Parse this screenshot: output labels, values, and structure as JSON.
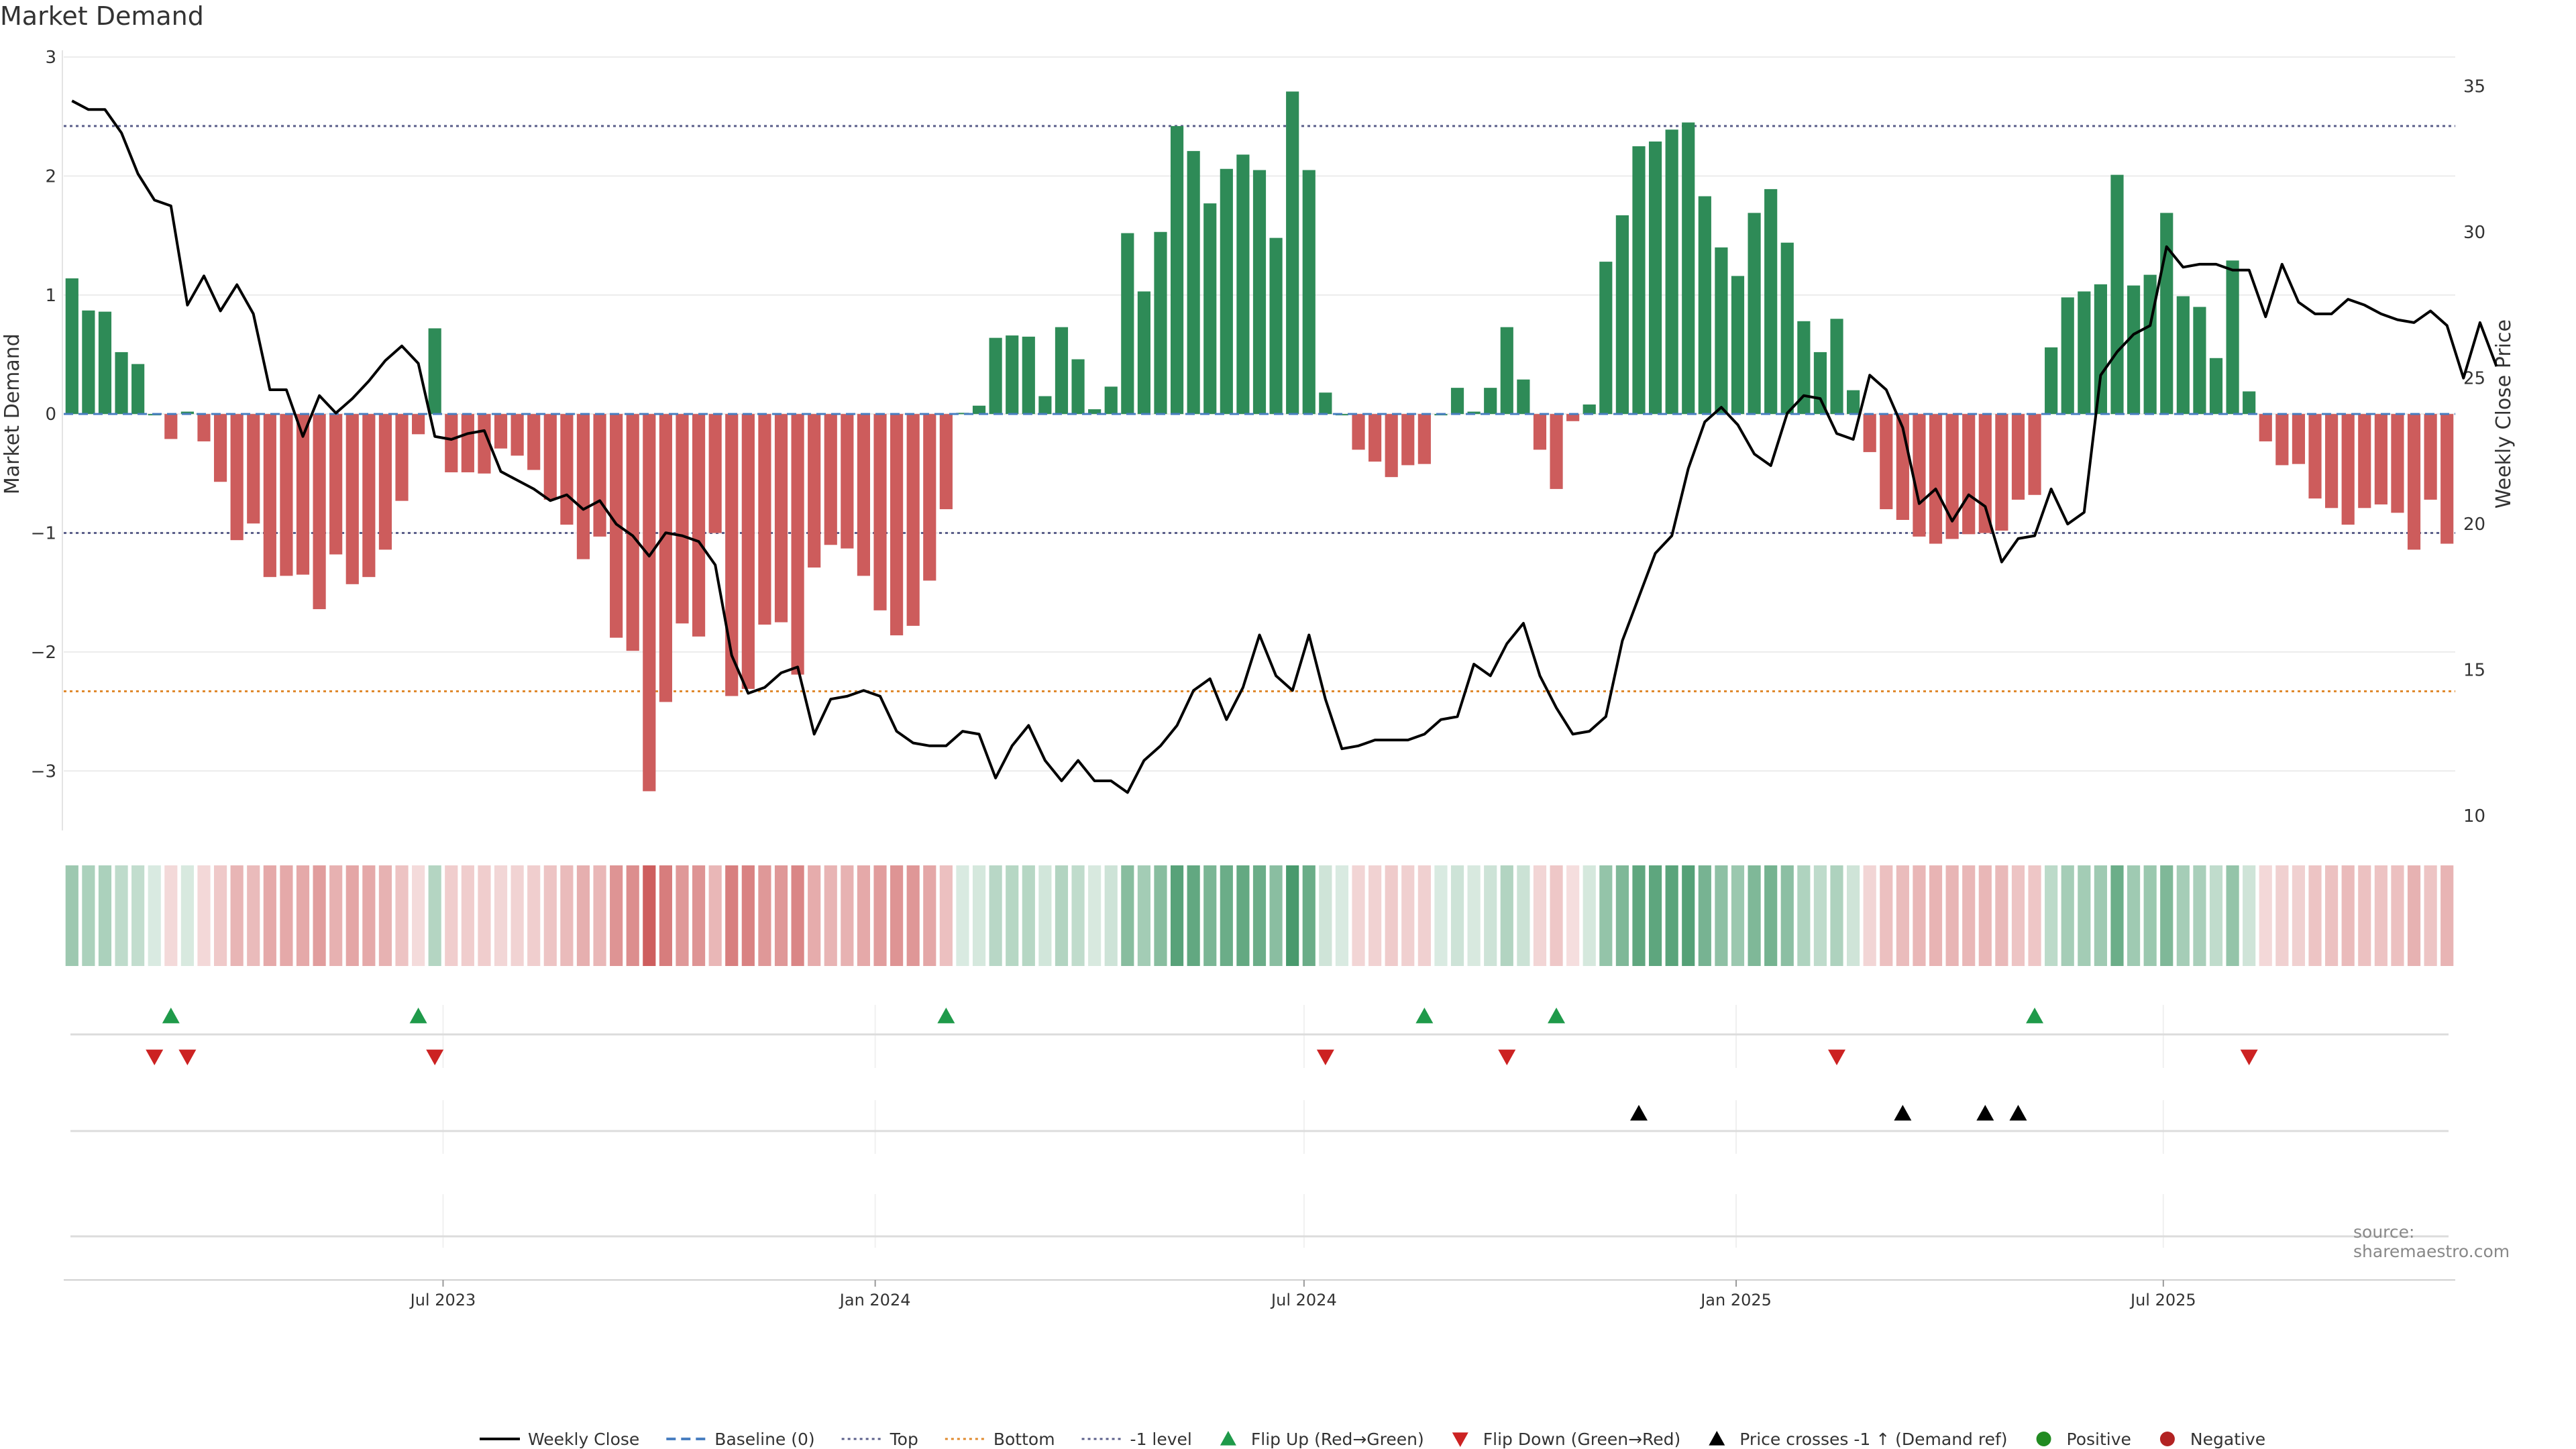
{
  "title": "Market Demand",
  "source": "source: sharemaestro.com",
  "colors": {
    "positive": "#2e8b57",
    "negative": "#cd5c5c",
    "price": "#000000",
    "baseline": "#4a7fc1",
    "top": "#5b5f8a",
    "bottom": "#e08a2e",
    "minus1": "#5b5f8a",
    "flip_up": "#1f9a4a",
    "flip_down": "#cc2222",
    "cross": "#000000",
    "legend_positive": "#228b22",
    "legend_negative": "#b22222"
  },
  "chart_data": {
    "type": "bar",
    "title": "Market Demand",
    "ylabel": "Market Demand",
    "y2label": "Weekly Close Price",
    "ylim": [
      -3.5,
      3.0
    ],
    "y2lim": [
      9.5,
      36.0
    ],
    "yticks": [
      3,
      2,
      1,
      0,
      -1,
      -2,
      -3
    ],
    "ytick_labels": [
      "3",
      "2",
      "1",
      "0",
      "−1",
      "−2",
      "−3"
    ],
    "y2ticks": [
      35,
      30,
      25,
      20,
      15,
      10
    ],
    "y2tick_labels": [
      "35",
      "30",
      "25",
      "20",
      "15",
      "10"
    ],
    "x_ticks": [
      {
        "label": "Jul 2023",
        "index": 22.5
      },
      {
        "label": "Jan 2024",
        "index": 48.7
      },
      {
        "label": "Jul 2024",
        "index": 74.7
      },
      {
        "label": "Jan 2025",
        "index": 100.9
      },
      {
        "label": "Jul 2025",
        "index": 126.8
      }
    ],
    "reference_lines": {
      "top": 2.42,
      "bottom": -2.33,
      "minus1": -1.0,
      "baseline": 0
    },
    "demand": [
      1.14,
      0.87,
      0.86,
      0.52,
      0.42,
      0.0,
      -0.21,
      0.02,
      -0.23,
      -0.57,
      -1.06,
      -0.92,
      -1.37,
      -1.36,
      -1.35,
      -1.64,
      -1.18,
      -1.43,
      -1.37,
      -1.14,
      -0.73,
      -0.17,
      0.72,
      -0.49,
      -0.49,
      -0.5,
      -0.29,
      -0.35,
      -0.47,
      -0.72,
      -0.93,
      -1.22,
      -1.03,
      -1.88,
      -1.99,
      -3.17,
      -2.42,
      -1.76,
      -1.87,
      -1.0,
      -2.37,
      -2.31,
      -1.77,
      -1.75,
      -2.19,
      -1.29,
      -1.1,
      -1.13,
      -1.36,
      -1.65,
      -1.86,
      -1.78,
      -1.4,
      -0.8,
      0.01,
      0.07,
      0.64,
      0.66,
      0.65,
      0.15,
      0.73,
      0.46,
      0.04,
      0.23,
      1.52,
      1.03,
      1.53,
      2.42,
      2.21,
      1.77,
      2.06,
      2.18,
      2.05,
      1.48,
      2.71,
      2.05,
      0.18,
      0.0,
      -0.3,
      -0.4,
      -0.53,
      -0.43,
      -0.42,
      0.0,
      0.22,
      0.02,
      0.22,
      0.73,
      0.29,
      -0.3,
      -0.63,
      -0.06,
      0.08,
      1.28,
      1.67,
      2.25,
      2.29,
      2.39,
      2.45,
      1.83,
      1.4,
      1.16,
      1.69,
      1.89,
      1.44,
      0.78,
      0.52,
      0.8,
      0.2,
      -0.32,
      -0.8,
      -0.89,
      -1.03,
      -1.09,
      -1.05,
      -1.01,
      -1.0,
      -0.98,
      -0.72,
      -0.68,
      0.56,
      0.98,
      1.03,
      1.09,
      2.01,
      1.08,
      1.17,
      1.69,
      0.99,
      0.9,
      0.47,
      1.29,
      0.19,
      -0.23,
      -0.43,
      -0.42,
      -0.71,
      -0.79,
      -0.93,
      -0.79,
      -0.76,
      -0.83,
      -1.14,
      -0.72,
      -1.09
    ],
    "price": [
      34.5,
      34.2,
      34.2,
      33.4,
      32.0,
      31.1,
      30.9,
      27.5,
      28.5,
      27.3,
      28.2,
      27.2,
      24.6,
      24.6,
      23.0,
      24.4,
      23.8,
      24.3,
      24.9,
      25.6,
      26.1,
      25.5,
      23.0,
      22.9,
      23.1,
      23.2,
      21.8,
      21.5,
      21.2,
      20.8,
      21.0,
      20.5,
      20.8,
      20.0,
      19.6,
      18.9,
      19.7,
      19.6,
      19.4,
      18.6,
      15.5,
      14.2,
      14.4,
      14.9,
      15.1,
      12.8,
      14.0,
      14.1,
      14.3,
      14.1,
      12.9,
      12.5,
      12.4,
      12.4,
      12.9,
      12.8,
      11.3,
      12.4,
      13.1,
      11.9,
      11.2,
      11.9,
      11.2,
      11.2,
      10.8,
      11.9,
      12.4,
      13.1,
      14.3,
      14.7,
      13.3,
      14.4,
      16.2,
      14.8,
      14.3,
      16.2,
      14.0,
      12.3,
      12.4,
      12.6,
      12.6,
      12.6,
      12.8,
      13.3,
      13.4,
      15.2,
      14.8,
      15.9,
      16.6,
      14.8,
      13.7,
      12.8,
      12.9,
      13.4,
      16.0,
      17.5,
      19.0,
      19.6,
      21.9,
      23.5,
      24.0,
      23.4,
      22.4,
      22.0,
      23.8,
      24.4,
      24.3,
      23.1,
      22.9,
      25.1,
      24.6,
      23.3,
      20.7,
      21.2,
      20.1,
      21.0,
      20.6,
      18.7,
      19.5,
      19.6,
      21.2,
      20.0,
      20.4,
      25.1,
      25.9,
      26.5,
      26.8,
      29.5,
      28.8,
      28.9,
      28.9,
      28.7,
      28.7,
      27.1,
      28.9,
      27.6,
      27.2,
      27.2,
      27.7,
      27.5,
      27.2,
      27.0,
      26.9,
      27.3,
      26.8,
      25.0,
      26.9,
      25.4
    ],
    "flip_up": [
      6,
      21,
      53,
      82,
      90,
      119
    ],
    "flip_down": [
      5,
      7,
      22,
      76,
      87,
      107,
      132
    ],
    "price_cross": [
      95,
      111,
      116,
      118
    ]
  },
  "legend": [
    {
      "key": "price",
      "label": "Weekly Close",
      "kind": "line"
    },
    {
      "key": "baseline",
      "label": "Baseline (0)",
      "kind": "dash"
    },
    {
      "key": "top",
      "label": "Top",
      "kind": "dot"
    },
    {
      "key": "bottom",
      "label": "Bottom",
      "kind": "dot"
    },
    {
      "key": "minus1",
      "label": "-1 level",
      "kind": "dot"
    },
    {
      "key": "flip_up",
      "label": "Flip Up (Red→Green)",
      "kind": "tri-up"
    },
    {
      "key": "flip_down",
      "label": "Flip Down (Green→Red)",
      "kind": "tri-down"
    },
    {
      "key": "cross",
      "label": "Price crosses -1 ↑ (Demand ref)",
      "kind": "tri-up"
    },
    {
      "key": "legend_positive",
      "label": "Positive",
      "kind": "circle"
    },
    {
      "key": "legend_negative",
      "label": "Negative",
      "kind": "circle"
    }
  ]
}
